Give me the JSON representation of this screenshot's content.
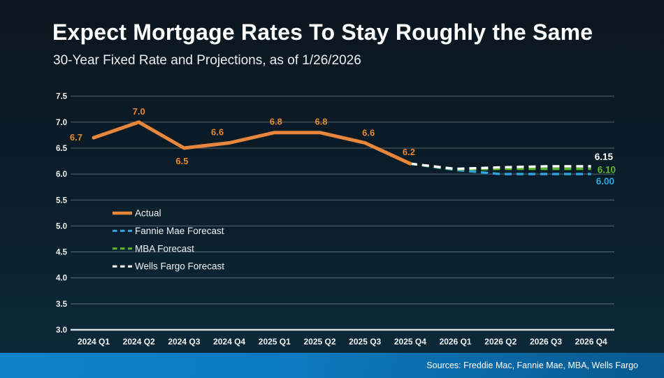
{
  "slide": {
    "title": "Expect Mortgage Rates To Stay Roughly the Same",
    "subtitle": "30-Year Fixed Rate and Projections, as of 1/26/2026",
    "sources": "Sources: Freddie Mac, Fannie Mae, MBA, Wells Fargo"
  },
  "theme": {
    "background_top": "#0B161F",
    "background_bottom": "#0C2B3C",
    "footer_bar_left": "#0E82C9",
    "footer_bar_right": "#08598F",
    "grid_color": "rgba(255,255,255,0.33)",
    "axis_color": "#D7DDE1",
    "tick_text_color": "#F2F4F5",
    "actual_color": "#E8873B",
    "fannie_mae_color": "#2FA6DF",
    "mba_color": "#5CB52F",
    "wells_fargo_color": "#FFFFFF"
  },
  "chart_data": {
    "type": "line",
    "title": "Expect Mortgage Rates To Stay Roughly the Same",
    "subtitle": "30-Year Fixed Rate and Projections, as of 1/26/2026",
    "categories": [
      "2024 Q1",
      "2024 Q2",
      "2024 Q3",
      "2024 Q4",
      "2025 Q1",
      "2025 Q2",
      "2025 Q3",
      "2025 Q4",
      "2026 Q1",
      "2026 Q2",
      "2026 Q3",
      "2026 Q4"
    ],
    "ylim": [
      3.0,
      7.5
    ],
    "ytick_step": 0.5,
    "grid": true,
    "legend_position": "middle-left",
    "series": [
      {
        "name": "Actual",
        "color": "#E8873B",
        "style": "solid",
        "start_index": 0,
        "values": [
          6.7,
          7.0,
          6.5,
          6.6,
          6.8,
          6.8,
          6.6,
          6.2
        ],
        "point_labels": [
          "6.7",
          "7.0",
          "6.5",
          "6.6",
          "6.8",
          "6.8",
          "6.6",
          "6.2"
        ]
      },
      {
        "name": "Fannie Mae Forecast",
        "color": "#2FA6DF",
        "style": "dashed",
        "start_index": 7,
        "values": [
          6.2,
          6.08,
          6.0,
          6.0,
          6.0
        ],
        "end_label": "6.00"
      },
      {
        "name": "MBA Forecast",
        "color": "#5CB52F",
        "style": "dashed",
        "start_index": 7,
        "values": [
          6.2,
          6.09,
          6.1,
          6.1,
          6.1
        ],
        "end_label": "6.10"
      },
      {
        "name": "Wells Fargo Forecast",
        "color": "#FFFFFF",
        "style": "dashed",
        "start_index": 7,
        "values": [
          6.2,
          6.1,
          6.13,
          6.15,
          6.15
        ],
        "end_label": "6.15"
      }
    ]
  }
}
